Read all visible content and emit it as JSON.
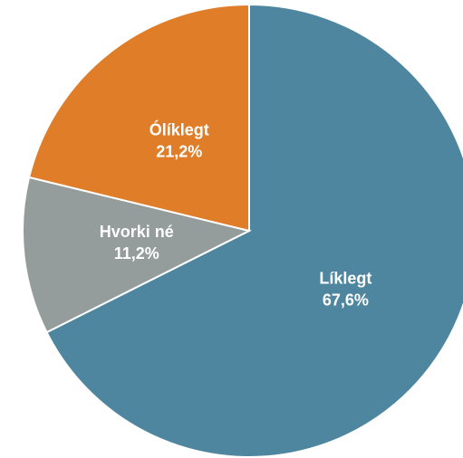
{
  "chart_data": {
    "type": "pie",
    "categories": [
      "Líklegt",
      "Hvorki né",
      "Ólíklegt"
    ],
    "values": [
      67.6,
      11.2,
      21.2
    ],
    "value_labels": [
      "67,6%",
      "11,2%",
      "21,2%"
    ],
    "colors": [
      "#4e86a0",
      "#959c9c",
      "#e07d28"
    ]
  }
}
